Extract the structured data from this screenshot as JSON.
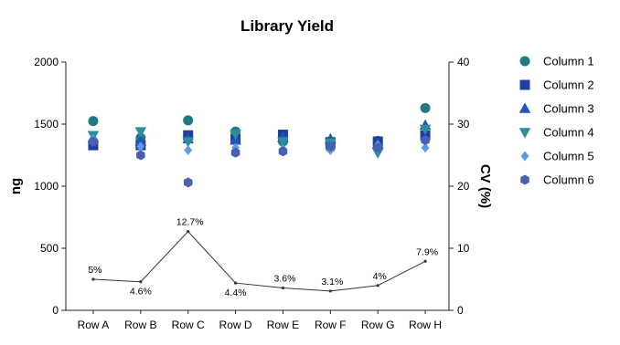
{
  "chart_data": {
    "type": "scatter",
    "title": "Library Yield",
    "categories": [
      "Row A",
      "Row B",
      "Row C",
      "Row D",
      "Row E",
      "Row F",
      "Row G",
      "Row H"
    ],
    "y_left": {
      "label": "ng",
      "lim": [
        0,
        2000
      ],
      "ticks": [
        0,
        500,
        1000,
        1500,
        2000
      ]
    },
    "y_right": {
      "label": "CV (%)",
      "lim": [
        0,
        40
      ],
      "ticks": [
        0,
        10,
        20,
        30,
        40
      ]
    },
    "legend_position": "right",
    "series": [
      {
        "name": "Column 1",
        "marker": "circle",
        "color": "#1f7a86",
        "values": [
          1525,
          1390,
          1530,
          1440,
          1360,
          1310,
          1365,
          1630
        ]
      },
      {
        "name": "Column 2",
        "marker": "square",
        "color": "#1f3fa0",
        "values": [
          1330,
          1330,
          1410,
          1380,
          1415,
          1355,
          1360,
          1410
        ]
      },
      {
        "name": "Column 3",
        "marker": "triangle-up",
        "color": "#2156b8",
        "values": [
          1390,
          1360,
          1380,
          1370,
          1390,
          1380,
          1340,
          1490
        ]
      },
      {
        "name": "Column 4",
        "marker": "triangle-down",
        "color": "#2a8f9a",
        "values": [
          1410,
          1440,
          1360,
          1420,
          1360,
          1350,
          1270,
          1460
        ]
      },
      {
        "name": "Column 5",
        "marker": "diamond",
        "color": "#5b9be0",
        "values": [
          1380,
          1320,
          1290,
          1310,
          1300,
          1290,
          1330,
          1310
        ]
      },
      {
        "name": "Column 6",
        "marker": "hexagon",
        "color": "#4a5fb0",
        "values": [
          1360,
          1250,
          1030,
          1270,
          1280,
          1320,
          1310,
          1370
        ]
      }
    ],
    "cv_line": {
      "values": [
        5.0,
        4.6,
        12.7,
        4.4,
        3.6,
        3.1,
        4.0,
        7.9
      ],
      "labels": [
        "5%",
        "4.6%",
        "12.7%",
        "4.4%",
        "3.6%",
        "3.1%",
        "4%",
        "7.9%"
      ],
      "color": "#333333"
    }
  }
}
